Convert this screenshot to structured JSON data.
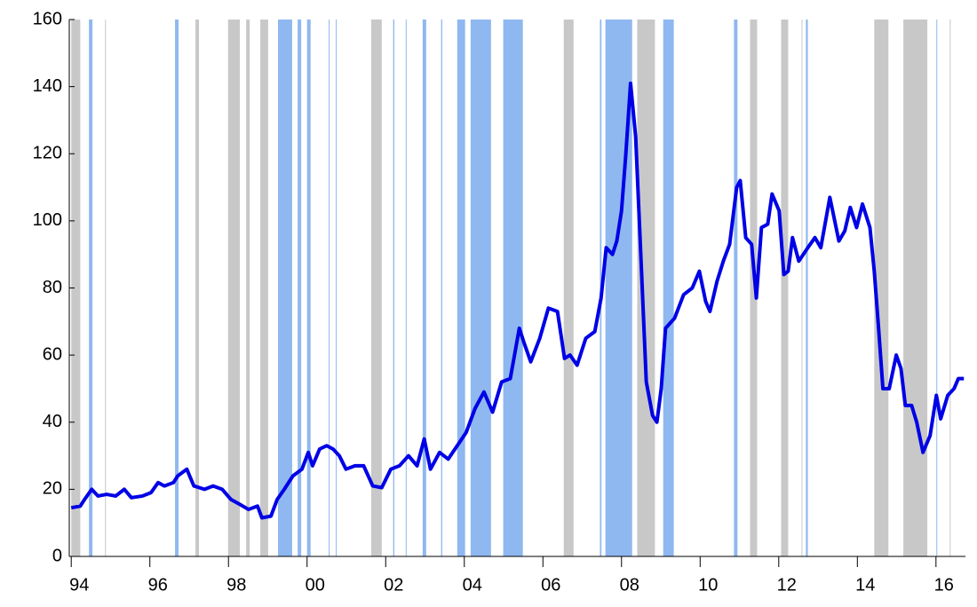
{
  "chart_data": {
    "type": "line",
    "x": [
      1994.0,
      1994.23,
      1994.34,
      1994.52,
      1994.68,
      1994.9,
      1995.13,
      1995.35,
      1995.53,
      1995.81,
      1996.03,
      1996.21,
      1996.37,
      1996.6,
      1996.71,
      1996.94,
      1997.12,
      1997.39,
      1997.61,
      1997.84,
      1998.06,
      1998.29,
      1998.51,
      1998.74,
      1998.85,
      1999.08,
      1999.24,
      1999.42,
      1999.64,
      1999.87,
      2000.03,
      2000.14,
      2000.32,
      2000.5,
      2000.66,
      2000.82,
      2000.99,
      2001.22,
      2001.44,
      2001.67,
      2001.9,
      2002.13,
      2002.35,
      2002.58,
      2002.8,
      2002.98,
      2003.14,
      2003.37,
      2003.59,
      2003.82,
      2004.05,
      2004.27,
      2004.5,
      2004.72,
      2004.95,
      2005.17,
      2005.4,
      2005.51,
      2005.69,
      2005.92,
      2006.14,
      2006.37,
      2006.55,
      2006.69,
      2006.87,
      2007.09,
      2007.32,
      2007.48,
      2007.61,
      2007.77,
      2007.88,
      2008.0,
      2008.11,
      2008.23,
      2008.36,
      2008.49,
      2008.63,
      2008.79,
      2008.9,
      2009.01,
      2009.12,
      2009.35,
      2009.58,
      2009.8,
      2009.98,
      2010.14,
      2010.25,
      2010.43,
      2010.59,
      2010.75,
      2010.93,
      2011.02,
      2011.16,
      2011.31,
      2011.43,
      2011.56,
      2011.72,
      2011.83,
      2012.01,
      2012.13,
      2012.24,
      2012.35,
      2012.51,
      2012.74,
      2012.92,
      2013.07,
      2013.3,
      2013.53,
      2013.68,
      2013.82,
      2013.98,
      2014.13,
      2014.32,
      2014.43,
      2014.54,
      2014.65,
      2014.81,
      2014.99,
      2015.11,
      2015.22,
      2015.38,
      2015.51,
      2015.67,
      2015.85,
      2016.01,
      2016.12,
      2016.3,
      2016.46,
      2016.57,
      2016.71
    ],
    "series": [
      {
        "color": "#0000e6",
        "values": [
          14.5,
          15,
          17,
          20,
          18,
          18.5,
          18,
          20,
          17.5,
          18,
          19,
          22,
          21,
          22,
          24,
          26,
          21,
          20,
          21,
          20,
          17,
          15.5,
          14,
          15,
          11.5,
          12,
          17,
          20,
          24,
          26,
          31,
          27,
          32,
          33,
          32,
          30,
          26,
          27,
          27,
          21,
          20.5,
          26,
          27,
          30,
          27,
          35,
          26,
          31,
          29,
          33,
          37,
          44,
          49,
          43,
          52,
          53,
          68,
          64,
          58,
          65,
          74,
          73,
          59,
          60,
          57,
          65,
          67,
          77,
          92,
          90,
          94,
          103,
          120,
          141,
          125,
          90,
          52,
          42,
          40,
          50,
          68,
          71,
          78,
          80,
          85,
          76,
          73,
          82,
          88,
          93,
          110,
          112,
          95,
          93,
          77,
          98,
          99,
          108,
          103,
          84,
          85,
          95,
          88,
          92,
          95,
          92,
          107,
          94,
          97,
          104,
          98,
          105,
          98,
          85,
          68,
          50,
          50,
          60,
          56,
          45,
          45,
          40,
          31,
          36,
          48,
          41,
          48,
          50,
          53,
          53
        ]
      }
    ],
    "bands": [
      {
        "start": 1994.0,
        "end": 1994.23,
        "color": "#c8c8c8"
      },
      {
        "start": 1994.86,
        "end": 1994.88,
        "color": "#c8c8c8"
      },
      {
        "start": 1997.16,
        "end": 1997.25,
        "color": "#c8c8c8"
      },
      {
        "start": 1997.99,
        "end": 1998.29,
        "color": "#c8c8c8"
      },
      {
        "start": 1998.45,
        "end": 1998.54,
        "color": "#c8c8c8"
      },
      {
        "start": 1998.81,
        "end": 1999.01,
        "color": "#c8c8c8"
      },
      {
        "start": 2001.63,
        "end": 2001.9,
        "color": "#c8c8c8"
      },
      {
        "start": 2006.53,
        "end": 2006.78,
        "color": "#c8c8c8"
      },
      {
        "start": 2008.4,
        "end": 2008.85,
        "color": "#c8c8c8"
      },
      {
        "start": 2011.27,
        "end": 2011.45,
        "color": "#c8c8c8"
      },
      {
        "start": 2012.06,
        "end": 2012.24,
        "color": "#c8c8c8"
      },
      {
        "start": 2012.58,
        "end": 2012.6,
        "color": "#c8c8c8"
      },
      {
        "start": 2014.43,
        "end": 2014.79,
        "color": "#c8c8c8"
      },
      {
        "start": 2015.17,
        "end": 2015.78,
        "color": "#c8c8c8"
      },
      {
        "start": 2016.35,
        "end": 2016.37,
        "color": "#c8c8c8"
      },
      {
        "start": 1994.45,
        "end": 1994.54,
        "color": "#8fb8f0"
      },
      {
        "start": 1996.64,
        "end": 1996.73,
        "color": "#8fb8f0"
      },
      {
        "start": 1999.26,
        "end": 1999.62,
        "color": "#8fb8f0"
      },
      {
        "start": 1999.76,
        "end": 1999.85,
        "color": "#8fb8f0"
      },
      {
        "start": 2000.0,
        "end": 2000.09,
        "color": "#8fb8f0"
      },
      {
        "start": 2000.55,
        "end": 2000.57,
        "color": "#8fb8f0"
      },
      {
        "start": 2000.73,
        "end": 2000.75,
        "color": "#8fb8f0"
      },
      {
        "start": 2002.19,
        "end": 2002.22,
        "color": "#8fb8f0"
      },
      {
        "start": 2002.51,
        "end": 2002.53,
        "color": "#8fb8f0"
      },
      {
        "start": 2002.94,
        "end": 2003.03,
        "color": "#8fb8f0"
      },
      {
        "start": 2003.41,
        "end": 2003.44,
        "color": "#8fb8f0"
      },
      {
        "start": 2003.82,
        "end": 2004.02,
        "color": "#8fb8f0"
      },
      {
        "start": 2004.16,
        "end": 2004.68,
        "color": "#8fb8f0"
      },
      {
        "start": 2004.99,
        "end": 2005.49,
        "color": "#8fb8f0"
      },
      {
        "start": 2007.45,
        "end": 2007.49,
        "color": "#8fb8f0"
      },
      {
        "start": 2007.59,
        "end": 2008.27,
        "color": "#8fb8f0"
      },
      {
        "start": 2009.06,
        "end": 2009.33,
        "color": "#8fb8f0"
      },
      {
        "start": 2010.86,
        "end": 2010.95,
        "color": "#8fb8f0"
      },
      {
        "start": 2012.69,
        "end": 2012.74,
        "color": "#8fb8f0"
      },
      {
        "start": 2016.01,
        "end": 2016.03,
        "color": "#8fb8f0"
      }
    ],
    "xlim": [
      1993.95,
      2016.75
    ],
    "xticks": [
      {
        "value": 1994,
        "label": "94"
      },
      {
        "value": 1996,
        "label": "96"
      },
      {
        "value": 1998,
        "label": "98"
      },
      {
        "value": 2000,
        "label": "00"
      },
      {
        "value": 2002,
        "label": "02"
      },
      {
        "value": 2004,
        "label": "04"
      },
      {
        "value": 2006,
        "label": "06"
      },
      {
        "value": 2008,
        "label": "08"
      },
      {
        "value": 2010,
        "label": "10"
      },
      {
        "value": 2012,
        "label": "12"
      },
      {
        "value": 2014,
        "label": "14"
      },
      {
        "value": 2016,
        "label": "16"
      }
    ],
    "ylim": [
      0,
      160
    ],
    "yticks": [
      0,
      20,
      40,
      60,
      80,
      100,
      120,
      140,
      160
    ]
  }
}
